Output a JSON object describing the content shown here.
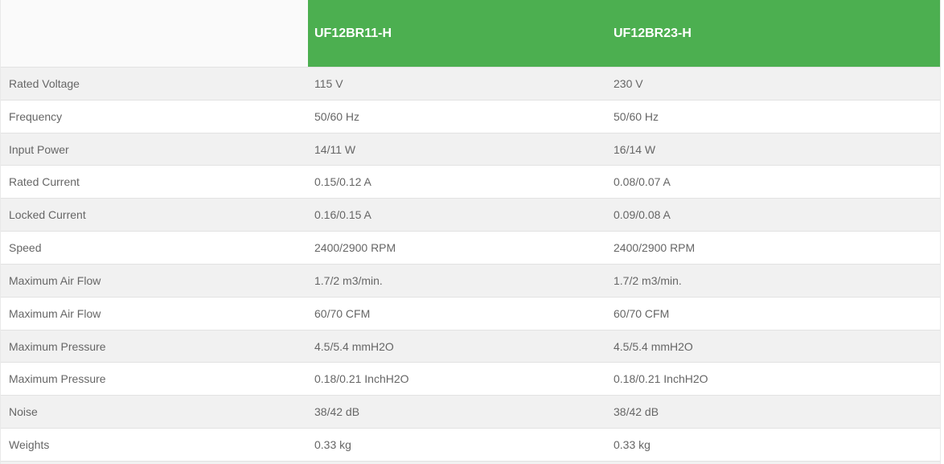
{
  "table": {
    "columns": [
      {
        "label": ""
      },
      {
        "label": "UF12BR11-H"
      },
      {
        "label": "UF12BR23-H"
      }
    ],
    "rows": [
      {
        "label": "Rated Voltage",
        "col1": "115 V",
        "col2": "230 V"
      },
      {
        "label": "Frequency",
        "col1": "50/60 Hz",
        "col2": "50/60 Hz"
      },
      {
        "label": "Input Power",
        "col1": "14/11 W",
        "col2": "16/14 W"
      },
      {
        "label": "Rated Current",
        "col1": "0.15/0.12 A",
        "col2": "0.08/0.07 A"
      },
      {
        "label": "Locked Current",
        "col1": "0.16/0.15 A",
        "col2": "0.09/0.08 A"
      },
      {
        "label": "Speed",
        "col1": "2400/2900 RPM",
        "col2": "2400/2900 RPM"
      },
      {
        "label": "Maximum Air Flow",
        "col1": "1.7/2 m3/min.",
        "col2": "1.7/2 m3/min."
      },
      {
        "label": "Maximum Air Flow",
        "col1": "60/70 CFM",
        "col2": "60/70 CFM"
      },
      {
        "label": "Maximum Pressure",
        "col1": "4.5/5.4 mmH2O",
        "col2": "4.5/5.4 mmH2O"
      },
      {
        "label": "Maximum Pressure",
        "col1": "0.18/0.21 InchH2O",
        "col2": "0.18/0.21 InchH2O"
      },
      {
        "label": "Noise",
        "col1": "38/42 dB",
        "col2": "38/42 dB"
      },
      {
        "label": "Weights",
        "col1": "0.33 kg",
        "col2": "0.33 kg"
      }
    ],
    "colors": {
      "header_green": "#4caf50",
      "header_text": "#ffffff",
      "row_shaded": "#f1f1f1",
      "row_plain": "#ffffff",
      "row_border": "#e2e2e2",
      "body_text": "#666666"
    }
  }
}
